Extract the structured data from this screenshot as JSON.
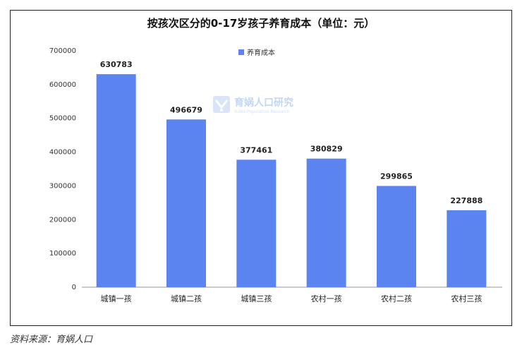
{
  "chart_data": {
    "type": "bar",
    "title": "按孩次区分的0-17岁孩子养育成本（单位：元）",
    "categories": [
      "城镇一孩",
      "城镇二孩",
      "城镇三孩",
      "农村一孩",
      "农村二孩",
      "农村三孩"
    ],
    "series": [
      {
        "name": "养育成本",
        "values": [
          630783,
          496679,
          377461,
          380829,
          299865,
          227888
        ],
        "color": "#5b84f0"
      }
    ],
    "yticks": [
      0,
      100000,
      200000,
      300000,
      400000,
      500000,
      600000,
      700000
    ],
    "ylim": [
      0,
      700000
    ],
    "legend_position": "top-center",
    "grid": false
  },
  "watermark": {
    "text": "育娲人口研究",
    "subtext": "YuWa Population Research"
  },
  "source": "资料来源：育娲人口"
}
